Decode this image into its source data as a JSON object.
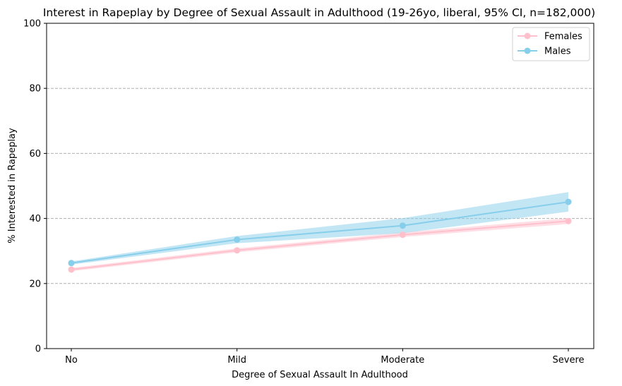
{
  "chart_data": {
    "type": "line",
    "title": "Interest in Rapeplay by Degree of Sexual Assault in Adulthood (19-26yo, liberal, 95% CI, n=182,000)",
    "xlabel": "Degree of Sexual Assault In Adulthood",
    "ylabel": "% Interested in Rapeplay",
    "categories": [
      "No",
      "Mild",
      "Moderate",
      "Severe"
    ],
    "ylim": [
      0,
      100
    ],
    "yticks": [
      0,
      20,
      40,
      60,
      80,
      100
    ],
    "grid": "y-dashed",
    "legend_position": "top-right",
    "series": [
      {
        "name": "Females",
        "color": "#ffc0cb",
        "values": [
          24.3,
          30.2,
          35.0,
          39.2
        ],
        "ci_low": [
          23.8,
          29.6,
          34.3,
          38.3
        ],
        "ci_high": [
          24.8,
          30.8,
          35.7,
          40.1
        ]
      },
      {
        "name": "Males",
        "color": "#87ceeb",
        "values": [
          26.3,
          33.5,
          37.8,
          45.1
        ],
        "ci_low": [
          25.8,
          32.4,
          35.5,
          42.1
        ],
        "ci_high": [
          26.8,
          34.6,
          40.1,
          48.1
        ]
      }
    ]
  }
}
